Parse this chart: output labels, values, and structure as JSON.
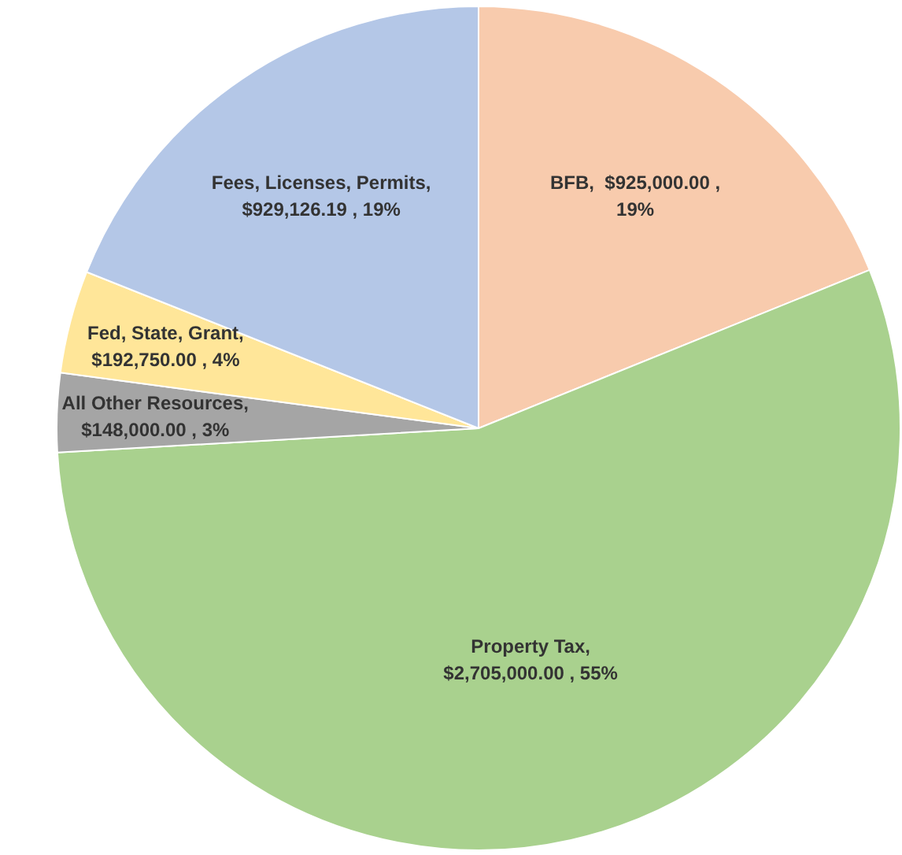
{
  "chart_data": {
    "type": "pie",
    "categories": [
      "BFB",
      "Property Tax",
      "All Other Resources",
      "Fed, State, Grant",
      "Fees, Licenses, Permits"
    ],
    "values": [
      925000,
      2705000,
      148000,
      192750,
      929126.19
    ],
    "colors": [
      "#f8cbad",
      "#a9d18e",
      "#a5a5a5",
      "#ffe699",
      "#b4c7e7"
    ],
    "value_labels": [
      ",  $925,000.00 ,\n19%",
      ",\n$2,705,000.00 , 55%",
      ",\n$148,000.00 , 3%",
      ",\n$192,750.00 , 4%",
      ",\n$929,126.19 , 19%"
    ],
    "legend": false
  }
}
